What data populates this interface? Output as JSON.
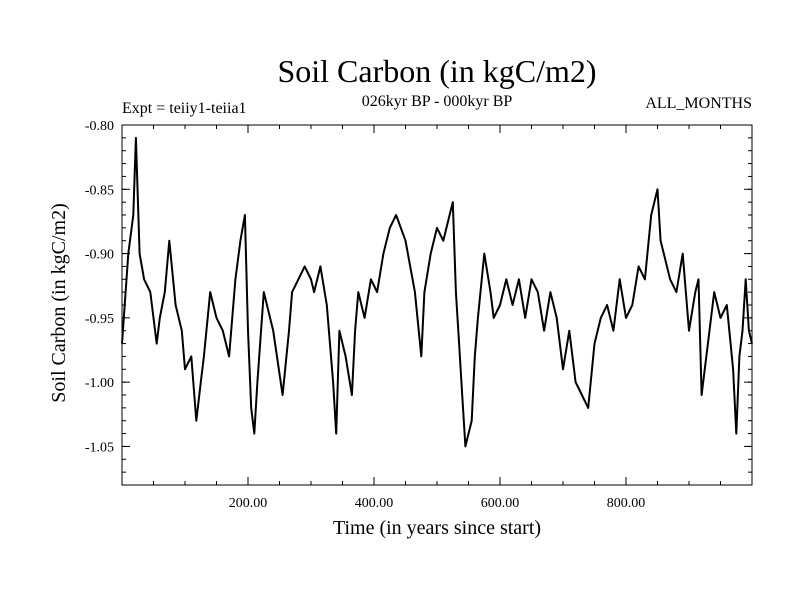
{
  "chart_data": {
    "type": "line",
    "title": "Soil Carbon (in kgC/m2)",
    "subtitle": "026kyr BP - 000kyr BP",
    "expt_label": "Expt = teiiy1-teiia1",
    "months_label": "ALL_MONTHS",
    "xlabel": "Time (in years since start)",
    "ylabel": "Soil Carbon (in kgC/m2)",
    "xlim": [
      0,
      1000
    ],
    "ylim": [
      -1.08,
      -0.8
    ],
    "x_ticks": [
      {
        "value": 200,
        "label": "200.00"
      },
      {
        "value": 400,
        "label": "400.00"
      },
      {
        "value": 600,
        "label": "600.00"
      },
      {
        "value": 800,
        "label": "800.00"
      }
    ],
    "y_ticks": [
      {
        "value": -0.8,
        "label": "-0.80"
      },
      {
        "value": -0.85,
        "label": "-0.85"
      },
      {
        "value": -0.9,
        "label": "-0.90"
      },
      {
        "value": -0.95,
        "label": "-0.95"
      },
      {
        "value": -1.0,
        "label": "-1.00"
      },
      {
        "value": -1.05,
        "label": "-1.05"
      }
    ],
    "grid": false,
    "series": [
      {
        "color": "#000000",
        "x": [
          0,
          10,
          18,
          22,
          28,
          35,
          45,
          55,
          60,
          68,
          75,
          85,
          95,
          100,
          110,
          118,
          125,
          130,
          140,
          150,
          160,
          170,
          180,
          188,
          195,
          200,
          205,
          210,
          215,
          225,
          240,
          255,
          265,
          270,
          280,
          290,
          300,
          305,
          315,
          325,
          335,
          340,
          345,
          355,
          365,
          370,
          375,
          385,
          395,
          405,
          415,
          425,
          435,
          450,
          465,
          475,
          480,
          490,
          500,
          510,
          520,
          525,
          530,
          535,
          540,
          545,
          555,
          560,
          565,
          575,
          585,
          590,
          600,
          610,
          620,
          630,
          640,
          650,
          660,
          670,
          680,
          690,
          700,
          710,
          720,
          730,
          740,
          750,
          760,
          770,
          780,
          790,
          800,
          810,
          820,
          830,
          840,
          850,
          855,
          860,
          870,
          880,
          890,
          900,
          910,
          915,
          920,
          930,
          940,
          950,
          960,
          970,
          975,
          980,
          985,
          990,
          995,
          1000
        ],
        "y": [
          -0.97,
          -0.9,
          -0.87,
          -0.81,
          -0.9,
          -0.92,
          -0.93,
          -0.97,
          -0.95,
          -0.93,
          -0.89,
          -0.94,
          -0.96,
          -0.99,
          -0.98,
          -1.03,
          -1.0,
          -0.98,
          -0.93,
          -0.95,
          -0.96,
          -0.98,
          -0.92,
          -0.89,
          -0.87,
          -0.96,
          -1.02,
          -1.04,
          -1.0,
          -0.93,
          -0.96,
          -1.01,
          -0.96,
          -0.93,
          -0.92,
          -0.91,
          -0.92,
          -0.93,
          -0.91,
          -0.94,
          -1.0,
          -1.04,
          -0.96,
          -0.98,
          -1.01,
          -0.96,
          -0.93,
          -0.95,
          -0.92,
          -0.93,
          -0.9,
          -0.88,
          -0.87,
          -0.89,
          -0.93,
          -0.98,
          -0.93,
          -0.9,
          -0.88,
          -0.89,
          -0.87,
          -0.86,
          -0.93,
          -0.97,
          -1.01,
          -1.05,
          -1.03,
          -0.98,
          -0.95,
          -0.9,
          -0.93,
          -0.95,
          -0.94,
          -0.92,
          -0.94,
          -0.92,
          -0.95,
          -0.92,
          -0.93,
          -0.96,
          -0.93,
          -0.95,
          -0.99,
          -0.96,
          -1.0,
          -1.01,
          -1.02,
          -0.97,
          -0.95,
          -0.94,
          -0.96,
          -0.92,
          -0.95,
          -0.94,
          -0.91,
          -0.92,
          -0.87,
          -0.85,
          -0.89,
          -0.9,
          -0.92,
          -0.93,
          -0.9,
          -0.96,
          -0.93,
          -0.92,
          -1.01,
          -0.97,
          -0.93,
          -0.95,
          -0.94,
          -0.99,
          -1.04,
          -0.98,
          -0.96,
          -0.92,
          -0.96,
          -0.97
        ]
      }
    ]
  }
}
